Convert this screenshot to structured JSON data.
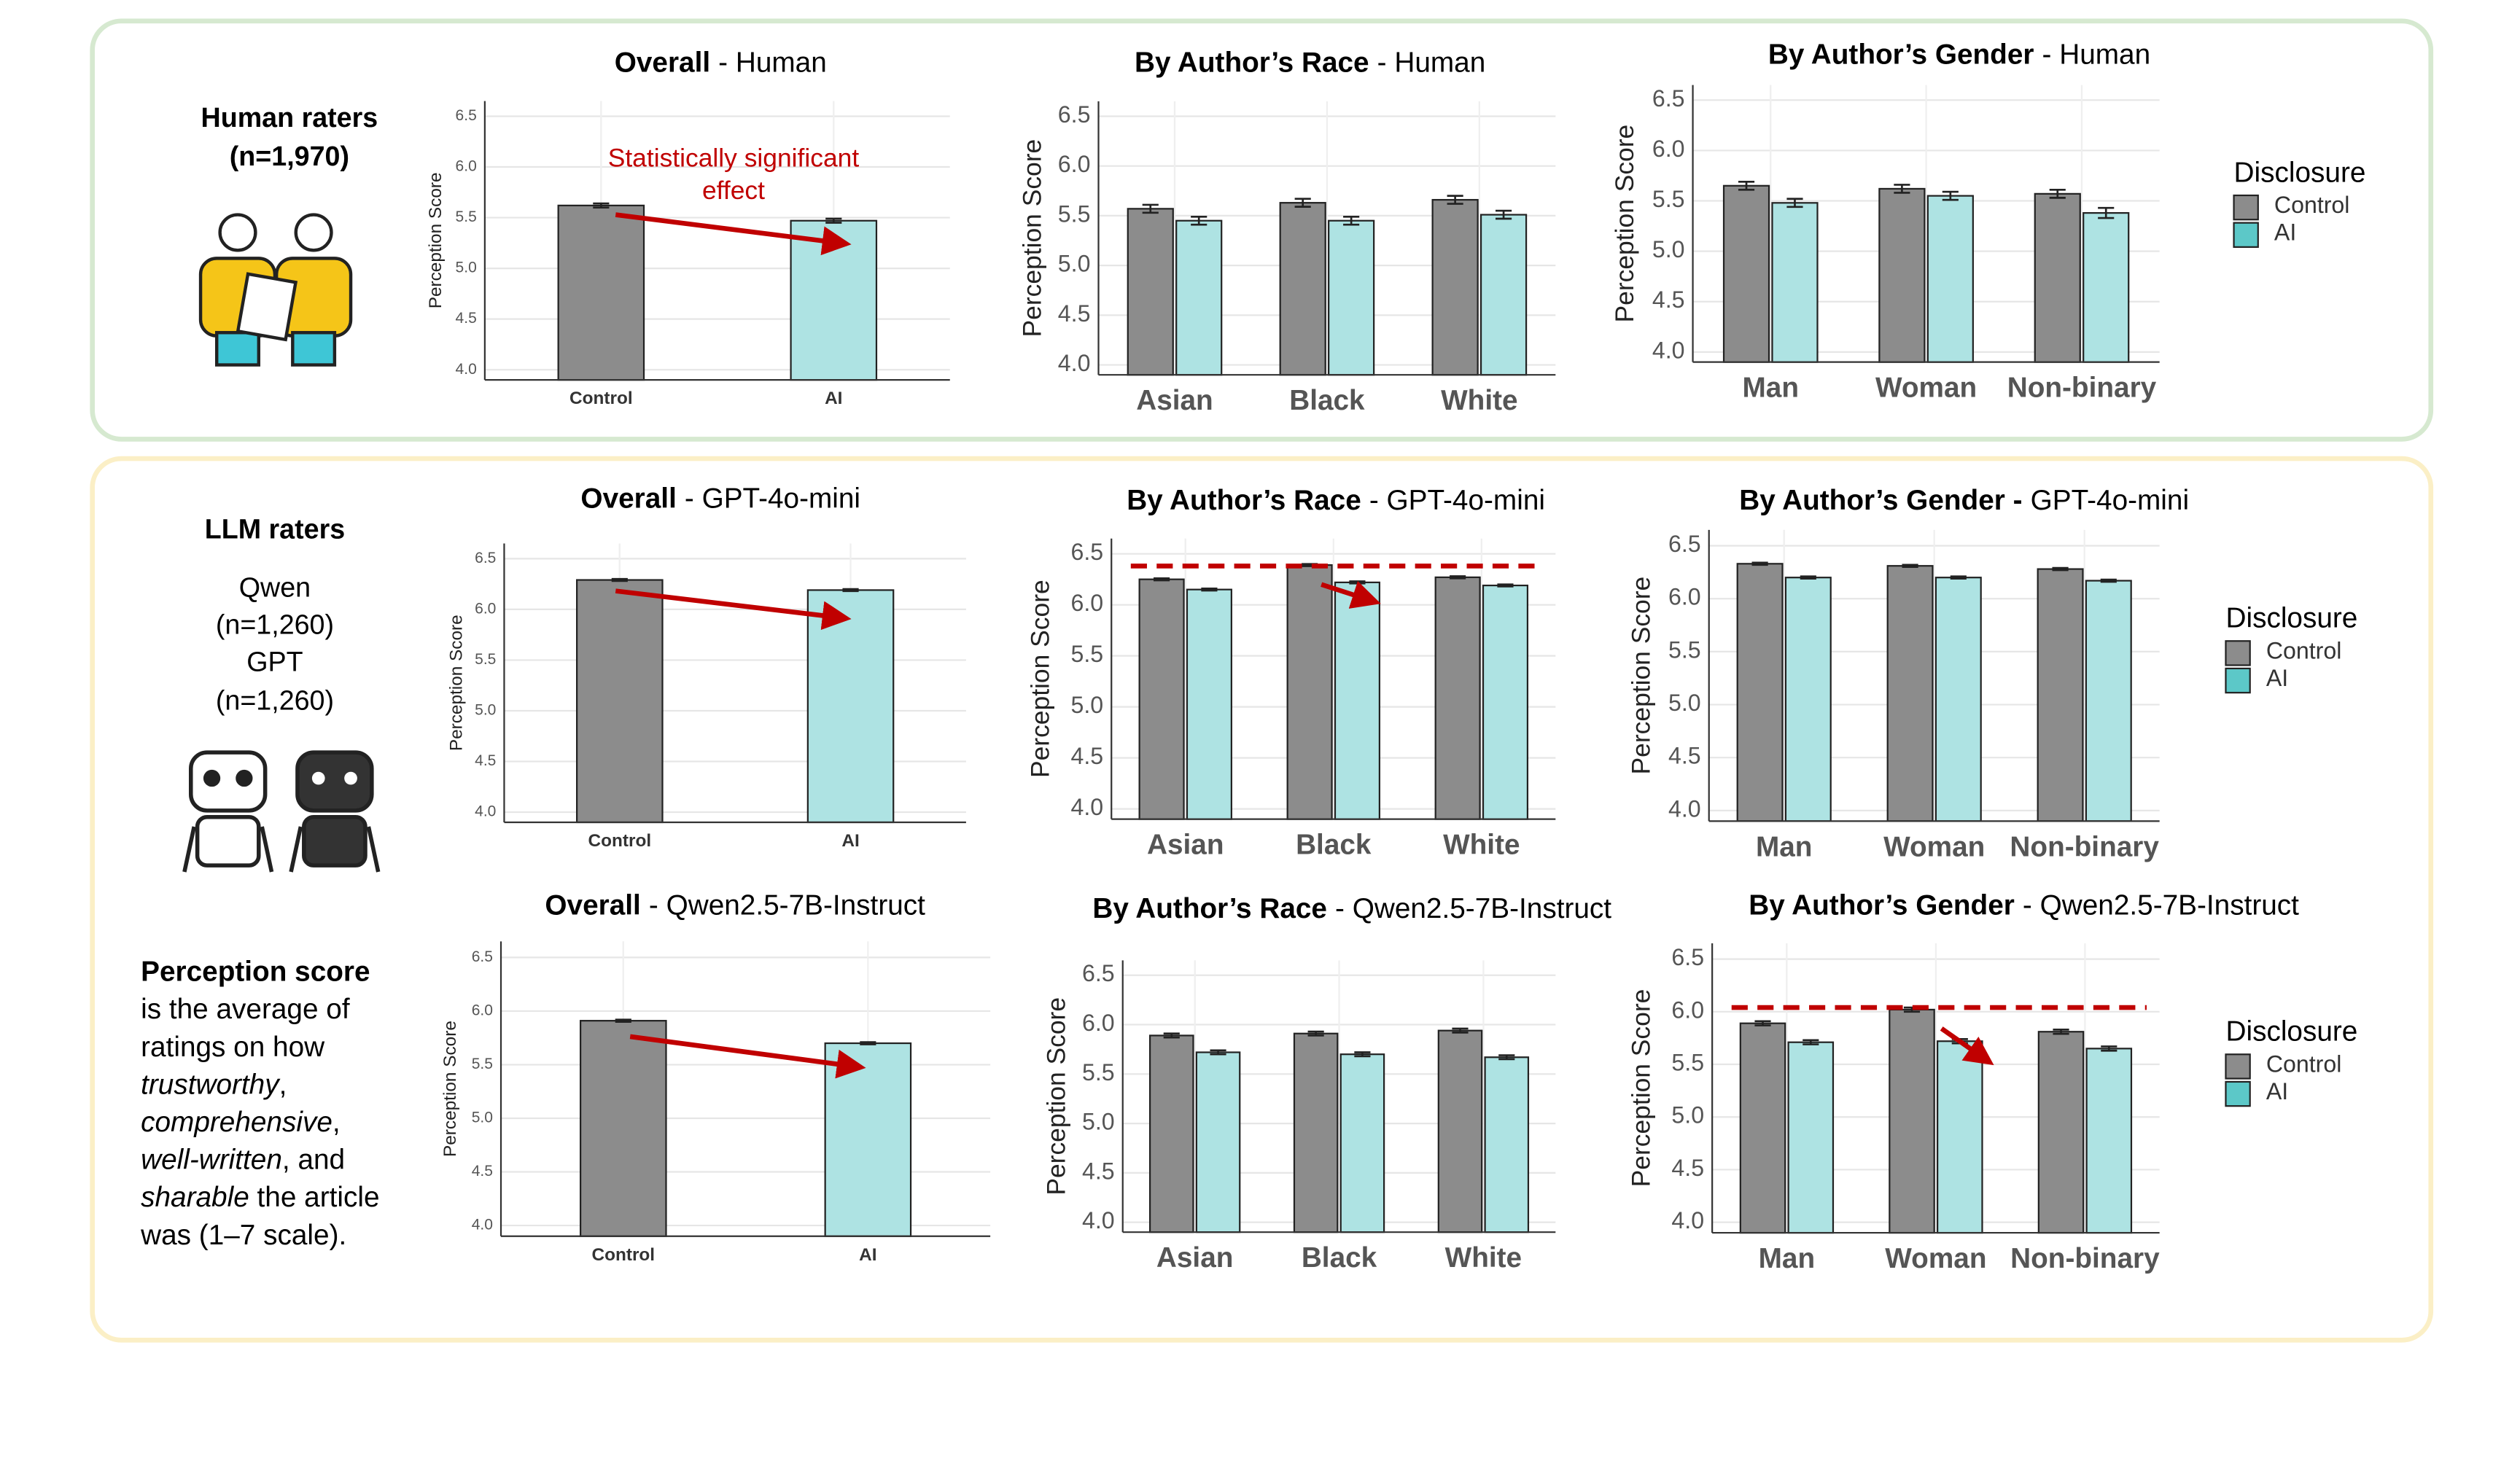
{
  "panels": {
    "human": {
      "title": [
        "Human raters",
        "(n=1,970)"
      ]
    },
    "llm": {
      "title": "LLM raters",
      "lines": [
        "Qwen",
        "(n=1,260)",
        "GPT",
        "(n=1,260)"
      ]
    },
    "note": [
      [
        {
          "text": "Perception score",
          "style": "bold"
        }
      ],
      [
        {
          "text": "is the average of",
          "style": "normal"
        }
      ],
      [
        {
          "text": "ratings on how",
          "style": "normal"
        }
      ],
      [
        {
          "text": "trustworthy",
          "style": "italic"
        },
        {
          "text": ",",
          "style": "normal"
        }
      ],
      [
        {
          "text": "comprehensive",
          "style": "italic"
        },
        {
          "text": ",",
          "style": "normal"
        }
      ],
      [
        {
          "text": "well-written",
          "style": "italic"
        },
        {
          "text": ", and",
          "style": "normal"
        }
      ],
      [
        {
          "text": "sharable",
          "style": "italic"
        },
        {
          "text": " the article",
          "style": "normal"
        }
      ],
      [
        {
          "text": "was (1–7 scale).",
          "style": "normal"
        }
      ]
    ]
  },
  "chart_data": [
    {
      "type": "bar",
      "title_bold": "Overall",
      "title_rest": "- Human",
      "ylabel": "Perception Score",
      "categories": [
        "Control",
        "AI"
      ],
      "values": [
        5.62,
        5.47
      ],
      "errors": [
        0.02,
        0.02
      ],
      "colors": [
        "#8c8c8c",
        "#aee3e3"
      ],
      "annotation": [
        "Statistically significant",
        "effect"
      ],
      "annotation_color": "#c00000",
      "ylim": [
        3.9,
        6.65
      ],
      "yticks": [
        {
          "value": 4,
          "label": "4.0"
        },
        4.5,
        {
          "value": 5,
          "label": "5.0"
        },
        5.5,
        {
          "value": 6,
          "label": "6.0"
        },
        6.5
      ],
      "grid": true
    },
    {
      "type": "bar",
      "title_bold": "By Author’s Race",
      "title_rest": "- Human",
      "ylabel": "Perception Score",
      "categories": [
        "Asian",
        "Black",
        "White"
      ],
      "series": [
        {
          "color": "#8c8c8c",
          "values": [
            5.57,
            5.63,
            5.66
          ],
          "errors": [
            0.04,
            0.04,
            0.04
          ]
        },
        {
          "color": "#aee3e3",
          "values": [
            5.45,
            5.45,
            5.51
          ],
          "errors": [
            0.04,
            0.04,
            0.04
          ]
        }
      ],
      "ylim": [
        3.9,
        6.65
      ],
      "yticks": [
        {
          "value": 4,
          "label": "4.0"
        },
        4.5,
        {
          "value": 5,
          "label": "5.0"
        },
        5.5,
        {
          "value": 6,
          "label": "6.0"
        },
        6.5
      ],
      "grid": true
    },
    {
      "type": "bar",
      "title_bold": "By Author’s Gender",
      "title_rest": "- Human",
      "ylabel": "Perception Score",
      "categories": [
        "Man",
        "Woman",
        "Non-binary"
      ],
      "legend_title": "Disclosure",
      "series": [
        {
          "name": "Control",
          "color": "#8c8c8c",
          "values": [
            5.65,
            5.62,
            5.57
          ],
          "errors": [
            0.04,
            0.04,
            0.04
          ]
        },
        {
          "name": "AI",
          "color": "#aee3e3",
          "values": [
            5.48,
            5.55,
            5.38
          ],
          "errors": [
            0.04,
            0.04,
            0.05
          ]
        }
      ],
      "ylim": [
        3.9,
        6.65
      ],
      "yticks": [
        {
          "value": 4,
          "label": "4.0"
        },
        4.5,
        {
          "value": 5,
          "label": "5.0"
        },
        5.5,
        {
          "value": 6,
          "label": "6.0"
        },
        6.5
      ],
      "grid": true
    },
    {
      "type": "bar",
      "title_bold": "Overall",
      "title_rest": "- GPT-4o-mini",
      "ylabel": "Perception Score",
      "categories": [
        "Control",
        "AI"
      ],
      "values": [
        6.29,
        6.19
      ],
      "errors": [
        0.01,
        0.01
      ],
      "colors": [
        "#8c8c8c",
        "#aee3e3"
      ],
      "ylim": [
        3.9,
        6.65
      ],
      "yticks": [
        {
          "value": 4,
          "label": "4.0"
        },
        4.5,
        {
          "value": 5,
          "label": "5.0"
        },
        5.5,
        {
          "value": 6,
          "label": "6.0"
        },
        6.5
      ],
      "grid": true
    },
    {
      "type": "bar",
      "title_bold": "By Author’s Race",
      "title_rest": "- GPT-4o-mini",
      "ylabel": "Perception Score",
      "categories": [
        "Asian",
        "Black",
        "White"
      ],
      "reference_line": 6.38,
      "series": [
        {
          "color": "#8c8c8c",
          "values": [
            6.25,
            6.39,
            6.27
          ],
          "errors": [
            0.01,
            0.01,
            0.01
          ]
        },
        {
          "color": "#aee3e3",
          "values": [
            6.15,
            6.22,
            6.19
          ],
          "errors": [
            0.01,
            0.01,
            0.01
          ]
        }
      ],
      "ylim": [
        3.9,
        6.65
      ],
      "yticks": [
        {
          "value": 4,
          "label": "4.0"
        },
        4.5,
        {
          "value": 5,
          "label": "5.0"
        },
        5.5,
        {
          "value": 6,
          "label": "6.0"
        },
        6.5
      ],
      "grid": true
    },
    {
      "type": "bar",
      "title_bold": "By Author’s Gender -",
      "title_rest": "GPT-4o-mini",
      "ylabel": "Perception Score",
      "categories": [
        "Man",
        "Woman",
        "Non-binary"
      ],
      "legend_title": "Disclosure",
      "series": [
        {
          "name": "Control",
          "color": "#8c8c8c",
          "values": [
            6.33,
            6.31,
            6.28
          ],
          "errors": [
            0.01,
            0.01,
            0.01
          ]
        },
        {
          "name": "AI",
          "color": "#aee3e3",
          "values": [
            6.2,
            6.2,
            6.17
          ],
          "errors": [
            0.01,
            0.01,
            0.01
          ]
        }
      ],
      "ylim": [
        3.9,
        6.65
      ],
      "yticks": [
        {
          "value": 4,
          "label": "4.0"
        },
        4.5,
        {
          "value": 5,
          "label": "5.0"
        },
        5.5,
        {
          "value": 6,
          "label": "6.0"
        },
        6.5
      ],
      "grid": true
    },
    {
      "type": "bar",
      "title_bold": "Overall",
      "title_rest": "- Qwen2.5-7B-Instruct",
      "ylabel": "Perception Score",
      "categories": [
        "Control",
        "AI"
      ],
      "values": [
        5.91,
        5.7
      ],
      "errors": [
        0.01,
        0.01
      ],
      "colors": [
        "#8c8c8c",
        "#aee3e3"
      ],
      "ylim": [
        3.9,
        6.65
      ],
      "yticks": [
        {
          "value": 4,
          "label": "4.0"
        },
        4.5,
        {
          "value": 5,
          "label": "5.0"
        },
        5.5,
        {
          "value": 6,
          "label": "6.0"
        },
        6.5
      ],
      "grid": true
    },
    {
      "type": "bar",
      "title_bold": "By Author’s Race",
      "title_rest": "- Qwen2.5-7B-Instruct",
      "ylabel": "Perception Score",
      "categories": [
        "Asian",
        "Black",
        "White"
      ],
      "series": [
        {
          "color": "#8c8c8c",
          "values": [
            5.89,
            5.91,
            5.94
          ],
          "errors": [
            0.02,
            0.02,
            0.02
          ]
        },
        {
          "color": "#aee3e3",
          "values": [
            5.72,
            5.7,
            5.67
          ],
          "errors": [
            0.02,
            0.02,
            0.02
          ]
        }
      ],
      "ylim": [
        3.9,
        6.65
      ],
      "yticks": [
        {
          "value": 4,
          "label": "4.0"
        },
        4.5,
        {
          "value": 5,
          "label": "5.0"
        },
        5.5,
        {
          "value": 6,
          "label": "6.0"
        },
        6.5
      ],
      "grid": true
    },
    {
      "type": "bar",
      "title_bold": "By Author’s Gender",
      "title_rest": "- Qwen2.5-7B-Instruct",
      "ylabel": "Perception Score",
      "categories": [
        "Man",
        "Woman",
        "Non-binary"
      ],
      "legend_title": "Disclosure",
      "reference_line": 6.04,
      "series": [
        {
          "name": "Control",
          "color": "#8c8c8c",
          "values": [
            5.89,
            6.02,
            5.81
          ],
          "errors": [
            0.02,
            0.02,
            0.02
          ]
        },
        {
          "name": "AI",
          "color": "#aee3e3",
          "values": [
            5.71,
            5.72,
            5.65
          ],
          "errors": [
            0.02,
            0.02,
            0.02
          ]
        }
      ],
      "ylim": [
        3.9,
        6.65
      ],
      "yticks": [
        {
          "value": 4,
          "label": "4.0"
        },
        4.5,
        {
          "value": 5,
          "label": "5.0"
        },
        5.5,
        {
          "value": 6,
          "label": "6.0"
        },
        6.5
      ],
      "grid": true
    }
  ]
}
